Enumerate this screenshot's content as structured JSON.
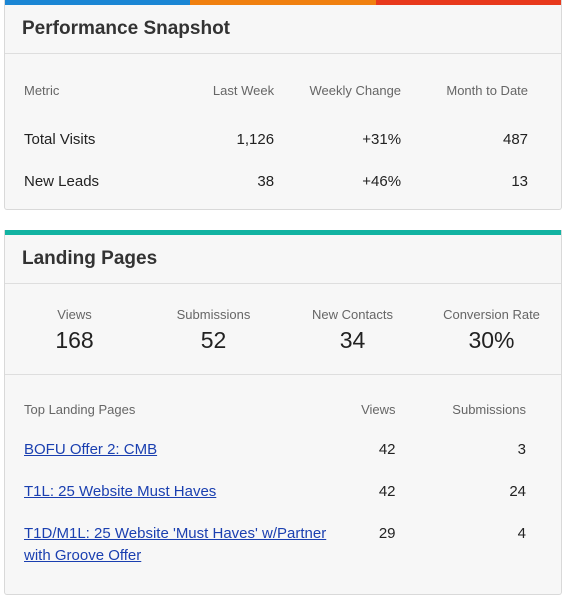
{
  "colors": {
    "bar_blue": "#1b86d4",
    "bar_orange": "#f0800f",
    "bar_red": "#e8391c",
    "bar_teal": "#12b3a2",
    "link": "#1a3fb0"
  },
  "performance": {
    "title": "Performance Snapshot",
    "headers": {
      "metric": "Metric",
      "last_week": "Last Week",
      "weekly_change": "Weekly Change",
      "month_to_date": "Month to Date"
    },
    "rows": [
      {
        "metric": "Total Visits",
        "last_week": "1,126",
        "weekly_change": "+31%",
        "month_to_date": "487"
      },
      {
        "metric": "New Leads",
        "last_week": "38",
        "weekly_change": "+46%",
        "month_to_date": "13"
      }
    ]
  },
  "landing": {
    "title": "Landing Pages",
    "stats": [
      {
        "label": "Views",
        "value": "168"
      },
      {
        "label": "Submissions",
        "value": "52"
      },
      {
        "label": "New Contacts",
        "value": "34"
      },
      {
        "label": "Conversion Rate",
        "value": "30%"
      }
    ],
    "table_headers": {
      "name": "Top Landing Pages",
      "views": "Views",
      "submissions": "Submissions"
    },
    "pages": [
      {
        "name": "BOFU Offer 2: CMB",
        "views": "42",
        "submissions": "3"
      },
      {
        "name": "T1L: 25 Website Must Haves",
        "views": "42",
        "submissions": "24"
      },
      {
        "name": "T1D/M1L: 25 Website 'Must Haves' w/Partner with Groove Offer",
        "views": "29",
        "submissions": "4"
      }
    ]
  }
}
